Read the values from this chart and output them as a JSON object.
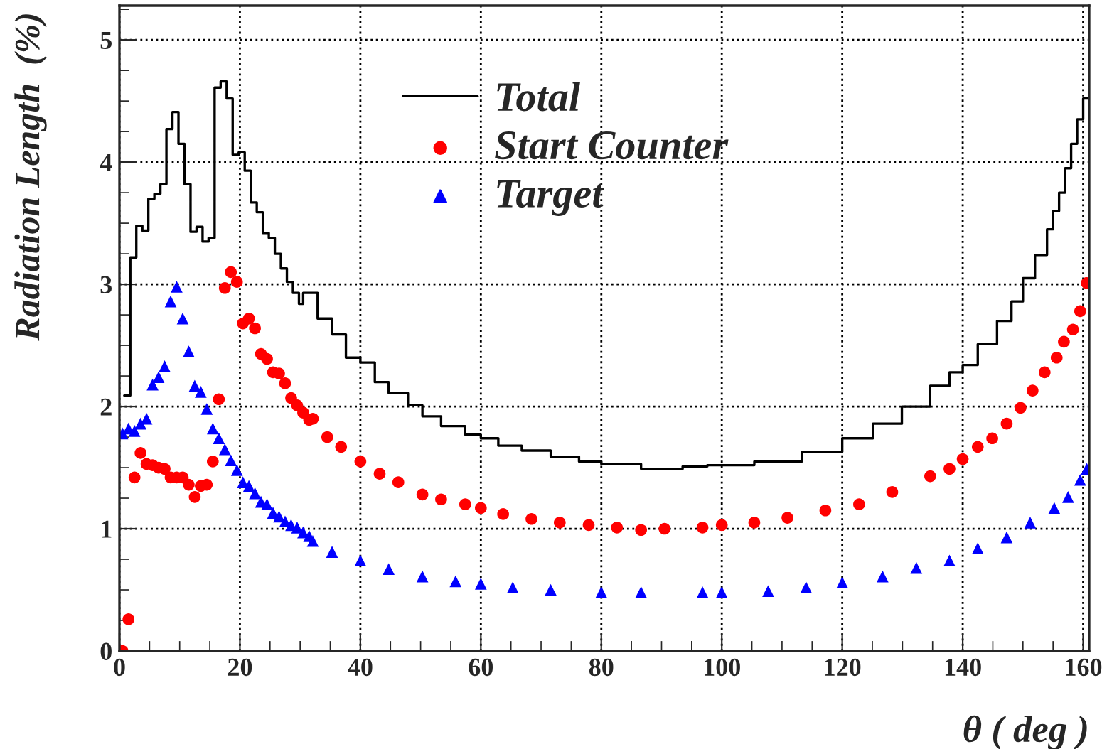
{
  "chart_data": {
    "type": "scatter",
    "xlabel": "θ ( deg )",
    "ylabel": "Radiation Length  (%)",
    "xlim": [
      0,
      161
    ],
    "ylim": [
      0,
      5.28
    ],
    "xticks": [
      0,
      20,
      40,
      60,
      80,
      100,
      120,
      140,
      160
    ],
    "yticks": [
      0,
      1,
      2,
      3,
      4,
      5
    ],
    "grid": true,
    "legend": "top",
    "series": [
      {
        "name": "Total",
        "type": "step",
        "color": "#000000",
        "marker": "none",
        "x": [
          0.8,
          1.8,
          2.8,
          3.8,
          4.8,
          5.8,
          6.8,
          7.8,
          8.8,
          9.8,
          10.8,
          11.8,
          12.8,
          13.8,
          14.8,
          15.8,
          16.8,
          17.8,
          18.8,
          19.8,
          20.8,
          21.8,
          22.8,
          23.8,
          24.8,
          25.8,
          26.8,
          27.8,
          28.8,
          29.8,
          30.5,
          32.9,
          35.3,
          37.6,
          40,
          42.4,
          44.7,
          47.9,
          50.3,
          53.4,
          57.4,
          60,
          62.9,
          66.8,
          71.6,
          76.3,
          80,
          86.6,
          93.5,
          97.6,
          100,
          105.4,
          113.3,
          120,
          125.1,
          129.9,
          134.6,
          137.8,
          140,
          142.5,
          145.7,
          148.1,
          150,
          152,
          154,
          155,
          156,
          157,
          158,
          159,
          160,
          161
        ],
        "values": [
          2.09,
          3.22,
          3.48,
          3.44,
          3.7,
          3.74,
          3.82,
          4.27,
          4.41,
          4.15,
          3.82,
          3.43,
          3.47,
          3.35,
          3.38,
          4.61,
          4.66,
          4.52,
          4.06,
          4.08,
          3.93,
          3.67,
          3.59,
          3.42,
          3.38,
          3.25,
          3.13,
          3.02,
          2.93,
          2.84,
          2.93,
          2.72,
          2.59,
          2.4,
          2.36,
          2.2,
          2.11,
          2.01,
          1.92,
          1.84,
          1.77,
          1.74,
          1.68,
          1.64,
          1.59,
          1.55,
          1.53,
          1.49,
          1.51,
          1.52,
          1.52,
          1.55,
          1.63,
          1.74,
          1.86,
          2.0,
          2.17,
          2.28,
          2.34,
          2.51,
          2.7,
          2.86,
          3.05,
          3.24,
          3.45,
          3.6,
          3.75,
          3.95,
          4.15,
          4.35,
          4.52,
          4.52
        ]
      },
      {
        "name": "Start Counter",
        "color": "#ff0000",
        "marker": "circle",
        "x": [
          0.5,
          1.5,
          2.5,
          3.5,
          4.5,
          5.5,
          6.5,
          7.5,
          8.5,
          9.5,
          10.5,
          11.5,
          12.5,
          13.5,
          14.5,
          15.5,
          16.5,
          17.5,
          18.5,
          19.5,
          20.5,
          21.5,
          22.5,
          23.5,
          24.5,
          25.5,
          26.5,
          27.5,
          28.5,
          29.5,
          30.5,
          31.5,
          32.1,
          34.5,
          36.8,
          40,
          43.2,
          46.3,
          50.3,
          53.4,
          57.4,
          60,
          63.7,
          68.4,
          73.1,
          77.9,
          82.6,
          86.6,
          90.5,
          96.8,
          100,
          105.4,
          110.9,
          117.2,
          122.8,
          128.3,
          134.6,
          137.8,
          140,
          142.5,
          144.9,
          147.3,
          149.6,
          151.6,
          153.6,
          155.6,
          156.8,
          158.3,
          159.5,
          160.6
        ],
        "values": [
          0.0,
          0.26,
          1.42,
          1.62,
          1.53,
          1.52,
          1.5,
          1.49,
          1.42,
          1.42,
          1.42,
          1.36,
          1.26,
          1.35,
          1.36,
          1.55,
          2.06,
          2.97,
          3.1,
          3.02,
          2.68,
          2.72,
          2.64,
          2.43,
          2.39,
          2.28,
          2.27,
          2.19,
          2.07,
          2.01,
          1.95,
          1.89,
          1.9,
          1.75,
          1.67,
          1.55,
          1.45,
          1.38,
          1.28,
          1.24,
          1.2,
          1.17,
          1.12,
          1.08,
          1.05,
          1.03,
          1.01,
          0.99,
          1.0,
          1.01,
          1.03,
          1.05,
          1.09,
          1.15,
          1.2,
          1.3,
          1.43,
          1.49,
          1.57,
          1.67,
          1.74,
          1.86,
          1.99,
          2.13,
          2.28,
          2.4,
          2.53,
          2.63,
          2.78,
          3.01
        ]
      },
      {
        "name": "Target",
        "color": "#0000ff",
        "marker": "triangle",
        "x": [
          0.5,
          1.5,
          2.5,
          3.5,
          4.5,
          5.5,
          6.5,
          7.5,
          8.5,
          9.5,
          10.5,
          11.5,
          12.5,
          13.5,
          14.5,
          15.5,
          16.5,
          17.5,
          18.5,
          19.5,
          20.5,
          21.5,
          22.5,
          23.5,
          24.5,
          25.5,
          26.5,
          27.5,
          28.5,
          29.5,
          30.5,
          31.5,
          32.1,
          35.3,
          40,
          44.7,
          50.3,
          55.8,
          60,
          65.3,
          71.6,
          80,
          86.6,
          96.8,
          100,
          107.7,
          114,
          120,
          126.7,
          132.3,
          137.8,
          142.5,
          147.3,
          151.2,
          155.2,
          157.5,
          159.5,
          160.6
        ],
        "values": [
          1.78,
          1.82,
          1.8,
          1.86,
          1.9,
          2.18,
          2.24,
          2.33,
          2.86,
          2.98,
          2.72,
          2.45,
          2.17,
          2.12,
          1.98,
          1.82,
          1.74,
          1.65,
          1.56,
          1.48,
          1.38,
          1.35,
          1.29,
          1.22,
          1.2,
          1.13,
          1.1,
          1.06,
          1.03,
          1.01,
          0.97,
          0.94,
          0.9,
          0.81,
          0.74,
          0.67,
          0.61,
          0.57,
          0.55,
          0.52,
          0.5,
          0.48,
          0.48,
          0.48,
          0.48,
          0.49,
          0.52,
          0.56,
          0.61,
          0.68,
          0.74,
          0.84,
          0.93,
          1.05,
          1.17,
          1.26,
          1.4,
          1.49
        ]
      }
    ]
  }
}
